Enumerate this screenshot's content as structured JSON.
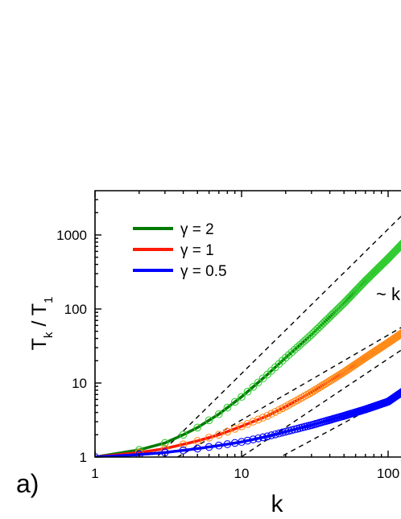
{
  "panel_label": "a)",
  "annotation": "~ k",
  "chart_data": {
    "type": "scatter",
    "xscale": "log",
    "yscale": "log",
    "xlim": [
      1,
      200
    ],
    "ylim": [
      1,
      4000
    ],
    "xlabel": "k",
    "ylabel": {
      "main": "T",
      "sub_num": "k",
      "mid": " / T",
      "sub_den": "1"
    },
    "xticks": [
      1,
      10,
      100
    ],
    "xtick_labels": [
      "1",
      "10",
      "100"
    ],
    "yticks": [
      1,
      10,
      100,
      1000
    ],
    "ytick_labels": [
      "1",
      "10",
      "100",
      "1000"
    ],
    "legend": {
      "placement": "top-left",
      "entries": [
        "γ = 2",
        "γ = 1",
        "γ = 0.5"
      ]
    },
    "series": [
      {
        "name": "γ = 2",
        "gamma": 2,
        "line_color": "#007a00",
        "marker_color": "#33cc33",
        "k": [
          1,
          2,
          3,
          4,
          5,
          7,
          10,
          15,
          20,
          30,
          50,
          70,
          100,
          130
        ],
        "values": [
          1,
          1.25,
          1.55,
          2.0,
          2.5,
          3.8,
          6.5,
          13,
          22,
          45,
          120,
          240,
          480,
          820
        ]
      },
      {
        "name": "γ = 1",
        "gamma": 1,
        "line_color": "#ff1a00",
        "marker_color": "#ff8c1a",
        "k": [
          1,
          2,
          3,
          5,
          7,
          10,
          15,
          20,
          30,
          50,
          70,
          100,
          130
        ],
        "values": [
          1,
          1.15,
          1.3,
          1.65,
          2.0,
          2.6,
          3.6,
          4.8,
          7.5,
          14,
          22,
          35,
          50
        ]
      },
      {
        "name": "γ = 0.5",
        "gamma": 0.5,
        "line_color": "#0000ff",
        "marker_color": "#0000ff",
        "k": [
          1,
          2,
          3,
          5,
          7,
          10,
          15,
          20,
          30,
          50,
          70,
          100,
          130
        ],
        "values": [
          1,
          1.08,
          1.15,
          1.3,
          1.43,
          1.6,
          1.9,
          2.2,
          2.7,
          3.6,
          4.4,
          5.6,
          8
        ]
      }
    ],
    "reference_lines": [
      {
        "style": "dashed",
        "points": [
          [
            1,
            0.15
          ],
          [
            130,
            2000
          ]
        ]
      },
      {
        "style": "dashed",
        "points": [
          [
            2,
            0.5
          ],
          [
            130,
            60
          ]
        ]
      },
      {
        "style": "dashed",
        "points": [
          [
            4,
            0.3
          ],
          [
            130,
            30
          ]
        ]
      },
      {
        "style": "dashed",
        "points": [
          [
            5,
            0.25
          ],
          [
            130,
            8
          ]
        ]
      }
    ]
  }
}
